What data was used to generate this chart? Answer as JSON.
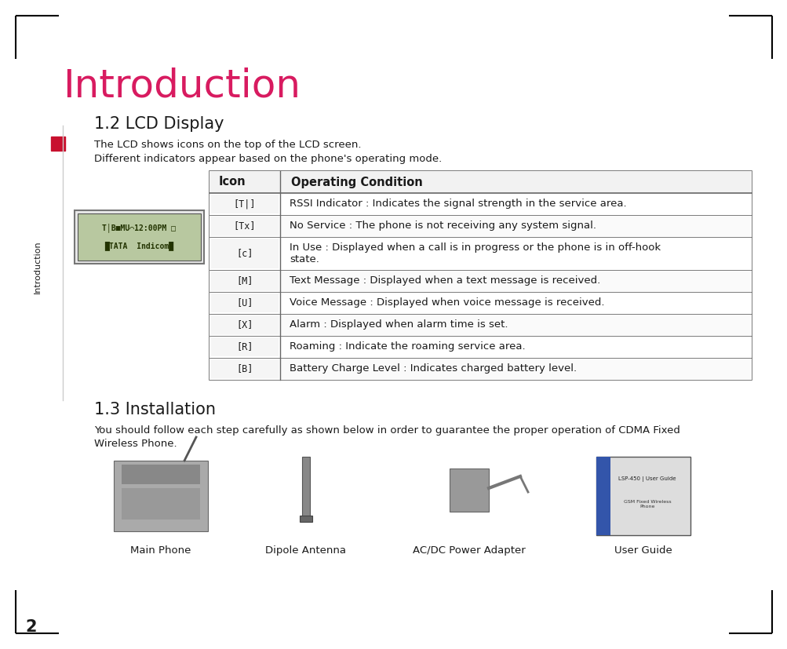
{
  "title": "Introduction",
  "title_color": "#d81b60",
  "title_fontsize": 36,
  "section1_heading": "1.2 LCD Display",
  "section1_text1": "The LCD shows icons on the top of the LCD screen.",
  "section1_text2": "Different indicators appear based on the phone's operating mode.",
  "table_header": [
    "Icon",
    "Operating Condition"
  ],
  "table_rows_desc": [
    "RSSI Indicator : Indicates the signal strength in the service area.",
    "No Service : The phone is not receiving any system signal.",
    "In Use : Displayed when a call is in progress or the phone is in off-hook\nstate.",
    "Text Message : Displayed when a text message is received.",
    "Voice Message : Displayed when voice message is received.",
    "Alarm : Displayed when alarm time is set.",
    "Roaming : Indicate the roaming service area.",
    "Battery Charge Level : Indicates charged battery level."
  ],
  "section2_heading": "1.3 Installation",
  "section2_text1": "You should follow each step carefully as shown below in order to guarantee the proper operation of CDMA Fixed",
  "section2_text2": "Wireless Phone.",
  "image_labels": [
    "Main Phone",
    "Dipole Antenna",
    "AC/DC Power Adapter",
    "User Guide"
  ],
  "sidebar_text": "Introduction",
  "page_number": "2",
  "red_square_color": "#c8102e",
  "corner_box_color": "#000000",
  "bg_color": "#ffffff",
  "text_color": "#1a1a1a",
  "table_line_color": "#666666",
  "heading_fontsize": 15,
  "body_fontsize": 9.5,
  "table_header_fontsize": 10.5,
  "sidebar_fontsize": 8
}
